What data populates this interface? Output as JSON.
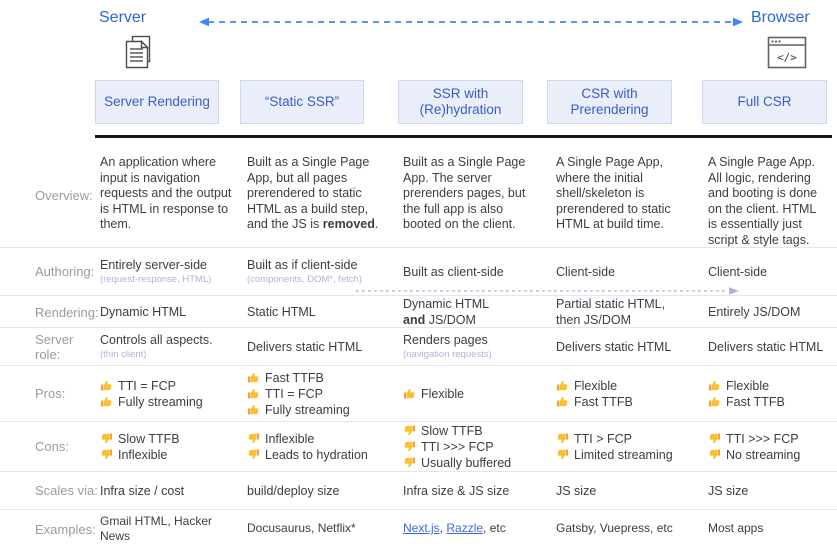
{
  "top": {
    "server_label": "Server",
    "browser_label": "Browser",
    "server_icon": "document-pages-icon",
    "browser_icon": "browser-window-code-icon",
    "arrow": "dashed-double-arrow"
  },
  "palette": {
    "heading_blue": "#2a66dd",
    "header_box_fill": "#e9eef9",
    "header_box_border": "#ccd9f0",
    "header_box_text": "#3b5cc8",
    "arrow_blue": "#4285f4",
    "lavender": "#b2b1dd",
    "body_text": "#3a3e45",
    "row_label_gray": "#9b9ba1",
    "thumb_gold": "#fcbf2e",
    "link_blue": "#3b6ae0"
  },
  "table": {
    "row_labels": [
      "Overview:",
      "Authoring:",
      "Rendering:",
      "Server role:",
      "Pros:",
      "Cons:",
      "Scales via:",
      "Examples:"
    ],
    "columns": [
      {
        "header": "Server Rendering",
        "overview": "An application where input is navigation requests and the output is HTML in response to them.",
        "authoring": {
          "main": "Entirely server-side",
          "sub": "(request-response, HTML)"
        },
        "rendering": [
          {
            "t": "Dynamic HTML"
          }
        ],
        "server_role": {
          "main": "Controls all aspects.",
          "sub": "(thin client)"
        },
        "pros": [
          "TTI = FCP",
          "Fully streaming"
        ],
        "cons": [
          "Slow TTFB",
          "Inflexible"
        ],
        "scales": "Infra size / cost",
        "examples": [
          {
            "t": "Gmail HTML, Hacker News"
          }
        ]
      },
      {
        "header": "“Static SSR”",
        "overview": [
          {
            "t": "Built as a Single Page App, but all pages prerendered to static HTML as a build step, and the JS is "
          },
          {
            "t": "removed",
            "b": true
          },
          {
            "t": "."
          }
        ],
        "authoring": {
          "main": "Built as if client-side",
          "sub": "(components, DOM*, fetch)"
        },
        "rendering": [
          {
            "t": "Static HTML"
          }
        ],
        "server_role": {
          "main": "Delivers static HTML"
        },
        "pros": [
          "Fast TTFB",
          "TTI = FCP",
          "Fully streaming"
        ],
        "cons": [
          "Inflexible",
          "Leads to hydration"
        ],
        "scales": "build/deploy size",
        "examples": [
          {
            "t": "Docusaurus, Netflix*"
          }
        ]
      },
      {
        "header": "SSR with (Re)hydration",
        "overview": "Built as a Single Page App. The server prerenders pages, but the full app is also booted on the client.",
        "authoring": {
          "main": "Built as client-side"
        },
        "rendering": [
          {
            "t": "Dynamic HTML"
          },
          {
            "br": true
          },
          {
            "t": "and",
            "b": true
          },
          {
            "t": " JS/DOM"
          }
        ],
        "server_role": {
          "main": "Renders pages",
          "sub": "(navigation requests)"
        },
        "pros": [
          "Flexible"
        ],
        "cons": [
          "Slow TTFB",
          "TTI >>> FCP",
          "Usually buffered"
        ],
        "scales": "Infra size & JS size",
        "examples": [
          {
            "t": "Next.js",
            "link": true
          },
          {
            "t": ", "
          },
          {
            "t": "Razzle",
            "link": true
          },
          {
            "t": ", etc"
          }
        ]
      },
      {
        "header": "CSR with Prerendering",
        "overview": "A Single Page App, where the initial shell/skeleton is prerendered to static HTML at build time.",
        "authoring": {
          "main": "Client-side"
        },
        "rendering": [
          {
            "t": "Partial static HTML,"
          },
          {
            "br": true
          },
          {
            "t": "then JS/DOM"
          }
        ],
        "server_role": {
          "main": "Delivers static HTML"
        },
        "pros": [
          "Flexible",
          "Fast TTFB"
        ],
        "cons": [
          "TTI > FCP",
          "Limited streaming"
        ],
        "scales": "JS size",
        "examples": [
          {
            "t": "Gatsby, Vuepress, etc"
          }
        ]
      },
      {
        "header": "Full CSR",
        "overview": "A Single Page App. All logic, rendering and booting is done on the client. HTML is essentially just script & style tags.",
        "authoring": {
          "main": "Client-side"
        },
        "rendering": [
          {
            "t": "Entirely JS/DOM"
          }
        ],
        "server_role": {
          "main": "Delivers static HTML"
        },
        "pros": [
          "Flexible",
          "Fast TTFB"
        ],
        "cons": [
          "TTI >>> FCP",
          "No streaming"
        ],
        "scales": "JS size",
        "examples": [
          {
            "t": "Most apps"
          }
        ]
      }
    ]
  }
}
